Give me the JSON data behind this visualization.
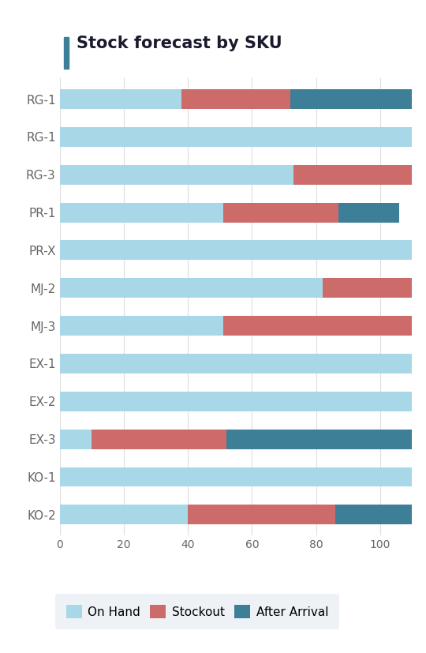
{
  "title": "Stock forecast by SKU",
  "categories": [
    "RG-1",
    "RG-1",
    "RG-3",
    "PR-1",
    "PR-X",
    "MJ-2",
    "MJ-3",
    "EX-1",
    "EX-2",
    "EX-3",
    "KO-1",
    "KO-2"
  ],
  "on_hand": [
    38,
    110,
    73,
    51,
    110,
    82,
    51,
    110,
    110,
    10,
    110,
    40
  ],
  "stockout": [
    34,
    0,
    37,
    36,
    0,
    28,
    59,
    0,
    0,
    42,
    0,
    46
  ],
  "after_arr": [
    38,
    0,
    0,
    19,
    0,
    0,
    0,
    0,
    0,
    58,
    0,
    24
  ],
  "color_on_hand": "#a8d8e8",
  "color_stockout": "#cd6b6b",
  "color_after_arr": "#3d7f96",
  "bar_height": 0.52,
  "xlim": [
    0,
    113
  ],
  "xticks": [
    0,
    20,
    40,
    60,
    80,
    100
  ],
  "legend_labels": [
    "On Hand",
    "Stockout",
    "After Arrival"
  ],
  "background_color": "#ffffff",
  "grid_color": "#dddddd",
  "title_color": "#1a1a2e",
  "label_color": "#666666",
  "title_accent_color": "#3d7f96",
  "legend_bg_color": "#eef2f7",
  "tick_fontsize": 10,
  "label_fontsize": 11,
  "title_fontsize": 15
}
